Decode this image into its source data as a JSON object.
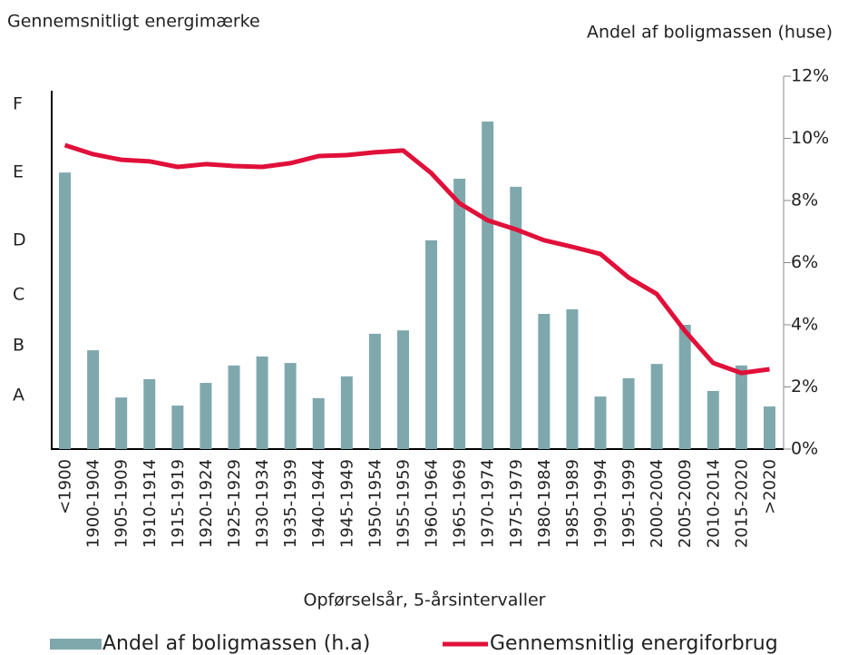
{
  "chart_data": {
    "type": "bar_line",
    "y_label": "Gennemsnitligt energimærke",
    "y2_label": "Andel af boligmassen (huse)",
    "x_label": "Opførselsår, 5-årsintervaller",
    "categories": [
      "<1900",
      "1900-1904",
      "1905-1909",
      "1910-1914",
      "1915-1919",
      "1920-1924",
      "1925-1929",
      "1930-1934",
      "1935-1939",
      "1940-1944",
      "1945-1949",
      "1950-1954",
      "1955-1959",
      "1960-1964",
      "1965-1969",
      "1970-1974",
      "1975-1979",
      "1980-1984",
      "1985-1989",
      "1990-1994",
      "1995-1999",
      "2000-2004",
      "2005-2009",
      "2010-2014",
      "2015-2020",
      ">2020"
    ],
    "series": [
      {
        "name": "Andel af boligmassen (h.a)",
        "color": "#7fa8ad",
        "type": "bar",
        "axis": "y2",
        "values": [
          8.9,
          3.18,
          1.66,
          2.25,
          1.4,
          2.13,
          2.69,
          2.98,
          2.77,
          1.64,
          2.34,
          3.71,
          3.82,
          6.72,
          8.7,
          10.54,
          8.44,
          4.35,
          4.5,
          1.69,
          2.28,
          2.74,
          4.0,
          1.87,
          2.69,
          1.37
        ]
      },
      {
        "name": "Gennemsnitlig energiforbrug",
        "color": "#e0103a",
        "type": "line",
        "axis": "y",
        "values": [
          9.78,
          9.49,
          9.31,
          9.26,
          9.08,
          9.17,
          9.11,
          9.08,
          9.2,
          9.43,
          9.46,
          9.55,
          9.61,
          8.88,
          7.91,
          7.36,
          7.07,
          6.72,
          6.51,
          6.28,
          5.52,
          4.99,
          3.8,
          2.77,
          2.45,
          2.57
        ]
      }
    ],
    "ylim": [
      0,
      12
    ],
    "yticks": [
      {
        "value": 1.72,
        "label": "A"
      },
      {
        "value": 3.33,
        "label": "B"
      },
      {
        "value": 4.96,
        "label": "C"
      },
      {
        "value": 6.72,
        "label": "D"
      },
      {
        "value": 8.9,
        "label": "E"
      },
      {
        "value": 11.1,
        "label": "F"
      }
    ],
    "y2lim": [
      0,
      12
    ],
    "y2ticks": [
      {
        "value": 0,
        "label": "0%"
      },
      {
        "value": 2,
        "label": "2%"
      },
      {
        "value": 4,
        "label": "4%"
      },
      {
        "value": 6,
        "label": "6%"
      },
      {
        "value": 8,
        "label": "8%"
      },
      {
        "value": 10,
        "label": "10%"
      },
      {
        "value": 12,
        "label": "12%"
      }
    ],
    "legend": "bottom"
  }
}
